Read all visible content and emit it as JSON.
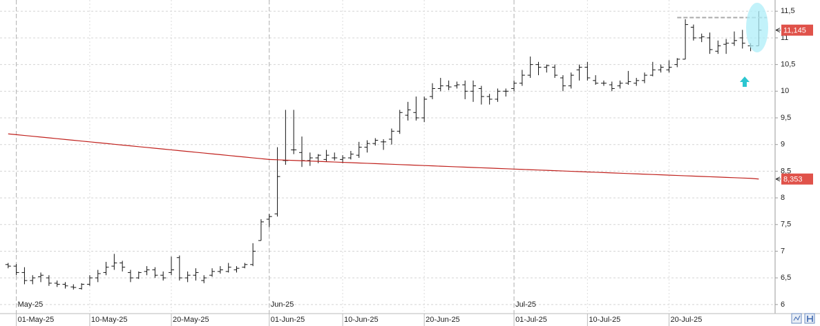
{
  "chart_data": {
    "type": "ohlc",
    "x": [
      "2025-04-30",
      "2025-05-01",
      "2025-05-02",
      "2025-05-03",
      "2025-05-04",
      "2025-05-05",
      "2025-05-06",
      "2025-05-07",
      "2025-05-08",
      "2025-05-09",
      "2025-05-10",
      "2025-05-11",
      "2025-05-12",
      "2025-05-13",
      "2025-05-14",
      "2025-05-15",
      "2025-05-16",
      "2025-05-17",
      "2025-05-18",
      "2025-05-19",
      "2025-05-20",
      "2025-05-21",
      "2025-05-22",
      "2025-05-23",
      "2025-05-24",
      "2025-05-25",
      "2025-05-26",
      "2025-05-27",
      "2025-05-28",
      "2025-05-29",
      "2025-05-30",
      "2025-05-31",
      "2025-06-01",
      "2025-06-02",
      "2025-06-03",
      "2025-06-04",
      "2025-06-05",
      "2025-06-06",
      "2025-06-07",
      "2025-06-08",
      "2025-06-09",
      "2025-06-10",
      "2025-06-11",
      "2025-06-12",
      "2025-06-13",
      "2025-06-14",
      "2025-06-15",
      "2025-06-16",
      "2025-06-17",
      "2025-06-18",
      "2025-06-19",
      "2025-06-20",
      "2025-06-21",
      "2025-06-22",
      "2025-06-23",
      "2025-06-24",
      "2025-06-25",
      "2025-06-26",
      "2025-06-27",
      "2025-06-28",
      "2025-06-29",
      "2025-06-30",
      "2025-07-01",
      "2025-07-02",
      "2025-07-03",
      "2025-07-04",
      "2025-07-05",
      "2025-07-06",
      "2025-07-07",
      "2025-07-08",
      "2025-07-09",
      "2025-07-10",
      "2025-07-11",
      "2025-07-12",
      "2025-07-13",
      "2025-07-14",
      "2025-07-15",
      "2025-07-16",
      "2025-07-17",
      "2025-07-18",
      "2025-07-19",
      "2025-07-20",
      "2025-07-21",
      "2025-07-22",
      "2025-07-23",
      "2025-07-24",
      "2025-07-25",
      "2025-07-26",
      "2025-07-27",
      "2025-07-28",
      "2025-07-29",
      "2025-07-30",
      "2025-07-31"
    ],
    "open": [
      6.75,
      6.72,
      6.6,
      6.45,
      6.52,
      6.5,
      6.4,
      6.38,
      6.33,
      6.3,
      6.38,
      6.5,
      6.6,
      6.72,
      6.78,
      6.6,
      6.5,
      6.62,
      6.65,
      6.55,
      6.6,
      6.88,
      6.5,
      6.55,
      6.45,
      6.55,
      6.62,
      6.62,
      6.65,
      6.7,
      6.75,
      7.2,
      7.6,
      7.7,
      8.7,
      8.9,
      8.85,
      8.7,
      8.75,
      8.72,
      8.75,
      8.72,
      8.75,
      8.8,
      8.95,
      9.02,
      9.05,
      9.1,
      9.25,
      9.55,
      9.6,
      9.5,
      9.9,
      10.05,
      10.1,
      10.1,
      10.12,
      10.0,
      10.05,
      9.9,
      9.85,
      10.0,
      10.05,
      10.15,
      10.3,
      10.5,
      10.45,
      10.45,
      10.25,
      10.1,
      10.4,
      10.45,
      10.2,
      10.15,
      10.12,
      10.1,
      10.15,
      10.15,
      10.2,
      10.3,
      10.4,
      10.4,
      10.5,
      10.6,
      11.2,
      11.0,
      11.0,
      10.75,
      10.88,
      10.9,
      11.0,
      10.85,
      10.85
    ],
    "high": [
      6.78,
      6.76,
      6.7,
      6.55,
      6.6,
      6.55,
      6.45,
      6.42,
      6.38,
      6.4,
      6.55,
      6.65,
      6.8,
      6.95,
      6.82,
      6.65,
      6.62,
      6.72,
      6.7,
      6.62,
      6.9,
      6.92,
      6.62,
      6.68,
      6.55,
      6.68,
      6.72,
      6.78,
      6.72,
      6.78,
      7.15,
      7.6,
      7.7,
      8.95,
      9.65,
      9.65,
      9.15,
      8.85,
      8.82,
      8.9,
      8.85,
      8.8,
      8.88,
      9.05,
      9.08,
      9.12,
      9.1,
      9.3,
      9.65,
      9.8,
      9.9,
      9.9,
      10.15,
      10.25,
      10.2,
      10.18,
      10.2,
      10.2,
      10.1,
      9.95,
      10.05,
      10.05,
      10.2,
      10.4,
      10.65,
      10.55,
      10.5,
      10.5,
      10.3,
      10.35,
      10.5,
      10.55,
      10.3,
      10.2,
      10.18,
      10.2,
      10.38,
      10.25,
      10.35,
      10.55,
      10.5,
      10.58,
      10.62,
      11.35,
      11.25,
      11.08,
      11.1,
      10.95,
      10.98,
      11.12,
      11.15,
      10.9,
      11.5
    ],
    "low": [
      6.68,
      6.55,
      6.38,
      6.38,
      6.42,
      6.35,
      6.33,
      6.3,
      6.28,
      6.28,
      6.35,
      6.42,
      6.55,
      6.65,
      6.62,
      6.42,
      6.48,
      6.55,
      6.5,
      6.45,
      6.55,
      6.45,
      6.42,
      6.45,
      6.4,
      6.52,
      6.58,
      6.6,
      6.6,
      6.68,
      6.72,
      7.2,
      7.45,
      7.65,
      8.62,
      8.82,
      8.58,
      8.6,
      8.65,
      8.68,
      8.7,
      8.65,
      8.72,
      8.75,
      8.85,
      8.98,
      8.9,
      9.0,
      9.2,
      9.45,
      9.45,
      9.42,
      9.85,
      10.0,
      10.02,
      10.05,
      9.85,
      9.8,
      9.75,
      9.75,
      9.8,
      9.9,
      10.0,
      10.1,
      10.25,
      10.3,
      10.35,
      10.25,
      10.0,
      10.05,
      10.2,
      10.2,
      10.12,
      10.1,
      10.0,
      10.05,
      10.12,
      10.1,
      10.15,
      10.28,
      10.35,
      10.35,
      10.45,
      10.6,
      10.95,
      10.92,
      10.7,
      10.7,
      10.7,
      10.85,
      10.8,
      10.75,
      10.85
    ],
    "close": [
      6.72,
      6.6,
      6.45,
      6.5,
      6.55,
      6.4,
      6.38,
      6.35,
      6.32,
      6.38,
      6.5,
      6.58,
      6.7,
      6.78,
      6.7,
      6.5,
      6.6,
      6.65,
      6.55,
      6.5,
      6.65,
      6.5,
      6.55,
      6.6,
      6.5,
      6.62,
      6.65,
      6.7,
      6.68,
      6.75,
      7.0,
      7.55,
      7.65,
      8.4,
      8.7,
      8.9,
      8.7,
      8.75,
      8.8,
      8.8,
      8.75,
      8.75,
      8.82,
      8.95,
      9.02,
      9.08,
      9.05,
      9.25,
      9.6,
      9.65,
      9.5,
      9.85,
      10.05,
      10.1,
      10.08,
      10.12,
      10.0,
      10.1,
      9.9,
      9.85,
      10.0,
      10.0,
      10.15,
      10.3,
      10.5,
      10.45,
      10.48,
      10.3,
      10.1,
      10.3,
      10.45,
      10.25,
      10.15,
      10.15,
      10.05,
      10.15,
      10.18,
      10.2,
      10.3,
      10.4,
      10.45,
      10.45,
      10.6,
      11.25,
      11.0,
      11.02,
      10.78,
      10.85,
      10.9,
      10.95,
      10.9,
      10.85,
      11.145
    ],
    "color": "#111111",
    "moving_average": {
      "color": "#c0201c",
      "values": [
        9.2,
        9.185,
        9.17,
        9.155,
        9.14,
        9.125,
        9.11,
        9.095,
        9.08,
        9.065,
        9.05,
        9.035,
        9.02,
        9.005,
        8.99,
        8.975,
        8.96,
        8.945,
        8.93,
        8.915,
        8.9,
        8.885,
        8.87,
        8.855,
        8.84,
        8.825,
        8.81,
        8.795,
        8.78,
        8.765,
        8.75,
        8.735,
        8.72,
        8.714,
        8.708,
        8.702,
        8.696,
        8.69,
        8.684,
        8.678,
        8.672,
        8.666,
        8.66,
        8.654,
        8.648,
        8.642,
        8.636,
        8.63,
        8.624,
        8.618,
        8.612,
        8.606,
        8.6,
        8.594,
        8.588,
        8.582,
        8.576,
        8.57,
        8.564,
        8.558,
        8.552,
        8.546,
        8.54,
        8.534,
        8.528,
        8.522,
        8.516,
        8.51,
        8.504,
        8.498,
        8.492,
        8.486,
        8.48,
        8.474,
        8.468,
        8.462,
        8.456,
        8.45,
        8.444,
        8.438,
        8.432,
        8.426,
        8.42,
        8.414,
        8.408,
        8.402,
        8.396,
        8.39,
        8.384,
        8.378,
        8.372,
        8.366,
        8.353
      ]
    },
    "reference_line": {
      "value": 11.38,
      "from": "2025-07-21",
      "to": "2025-08-01",
      "color": "#aaaaaa"
    },
    "last_labels": [
      {
        "value": 11.145,
        "label": "11,145",
        "color": "#e0524a"
      },
      {
        "value": 8.353,
        "label": "8,353",
        "color": "#e0524a"
      }
    ],
    "xlim": [
      "2025-04-29",
      "2025-08-02"
    ],
    "xticks": [
      {
        "value": "2025-05-01",
        "label": "01-May-25"
      },
      {
        "value": "2025-05-10",
        "label": "10-May-25"
      },
      {
        "value": "2025-05-20",
        "label": "20-May-25"
      },
      {
        "value": "2025-06-01",
        "label": "01-Jun-25"
      },
      {
        "value": "2025-06-10",
        "label": "10-Jun-25"
      },
      {
        "value": "2025-06-20",
        "label": "20-Jun-25"
      },
      {
        "value": "2025-07-01",
        "label": "01-Jul-25"
      },
      {
        "value": "2025-07-10",
        "label": "10-Jul-25"
      },
      {
        "value": "2025-07-20",
        "label": "20-Jul-25"
      }
    ],
    "month_ticks": [
      {
        "value": "2025-05-01",
        "label": "May-25"
      },
      {
        "value": "2025-06-01",
        "label": "Jun-25"
      },
      {
        "value": "2025-07-01",
        "label": "Jul-25"
      }
    ],
    "ylim": [
      5.83,
      11.71
    ],
    "yticks": [
      6,
      {
        "value": 6.5,
        "label": "6,5"
      },
      7,
      {
        "value": 7.5,
        "label": "7,5"
      },
      8,
      {
        "value": 8.5,
        "label": "8,5"
      },
      9,
      {
        "value": 9.5,
        "label": "9,5"
      },
      10,
      {
        "value": 10.5,
        "label": "10,5"
      },
      11,
      {
        "value": 11.5,
        "label": "11,5"
      }
    ],
    "grid": true
  }
}
